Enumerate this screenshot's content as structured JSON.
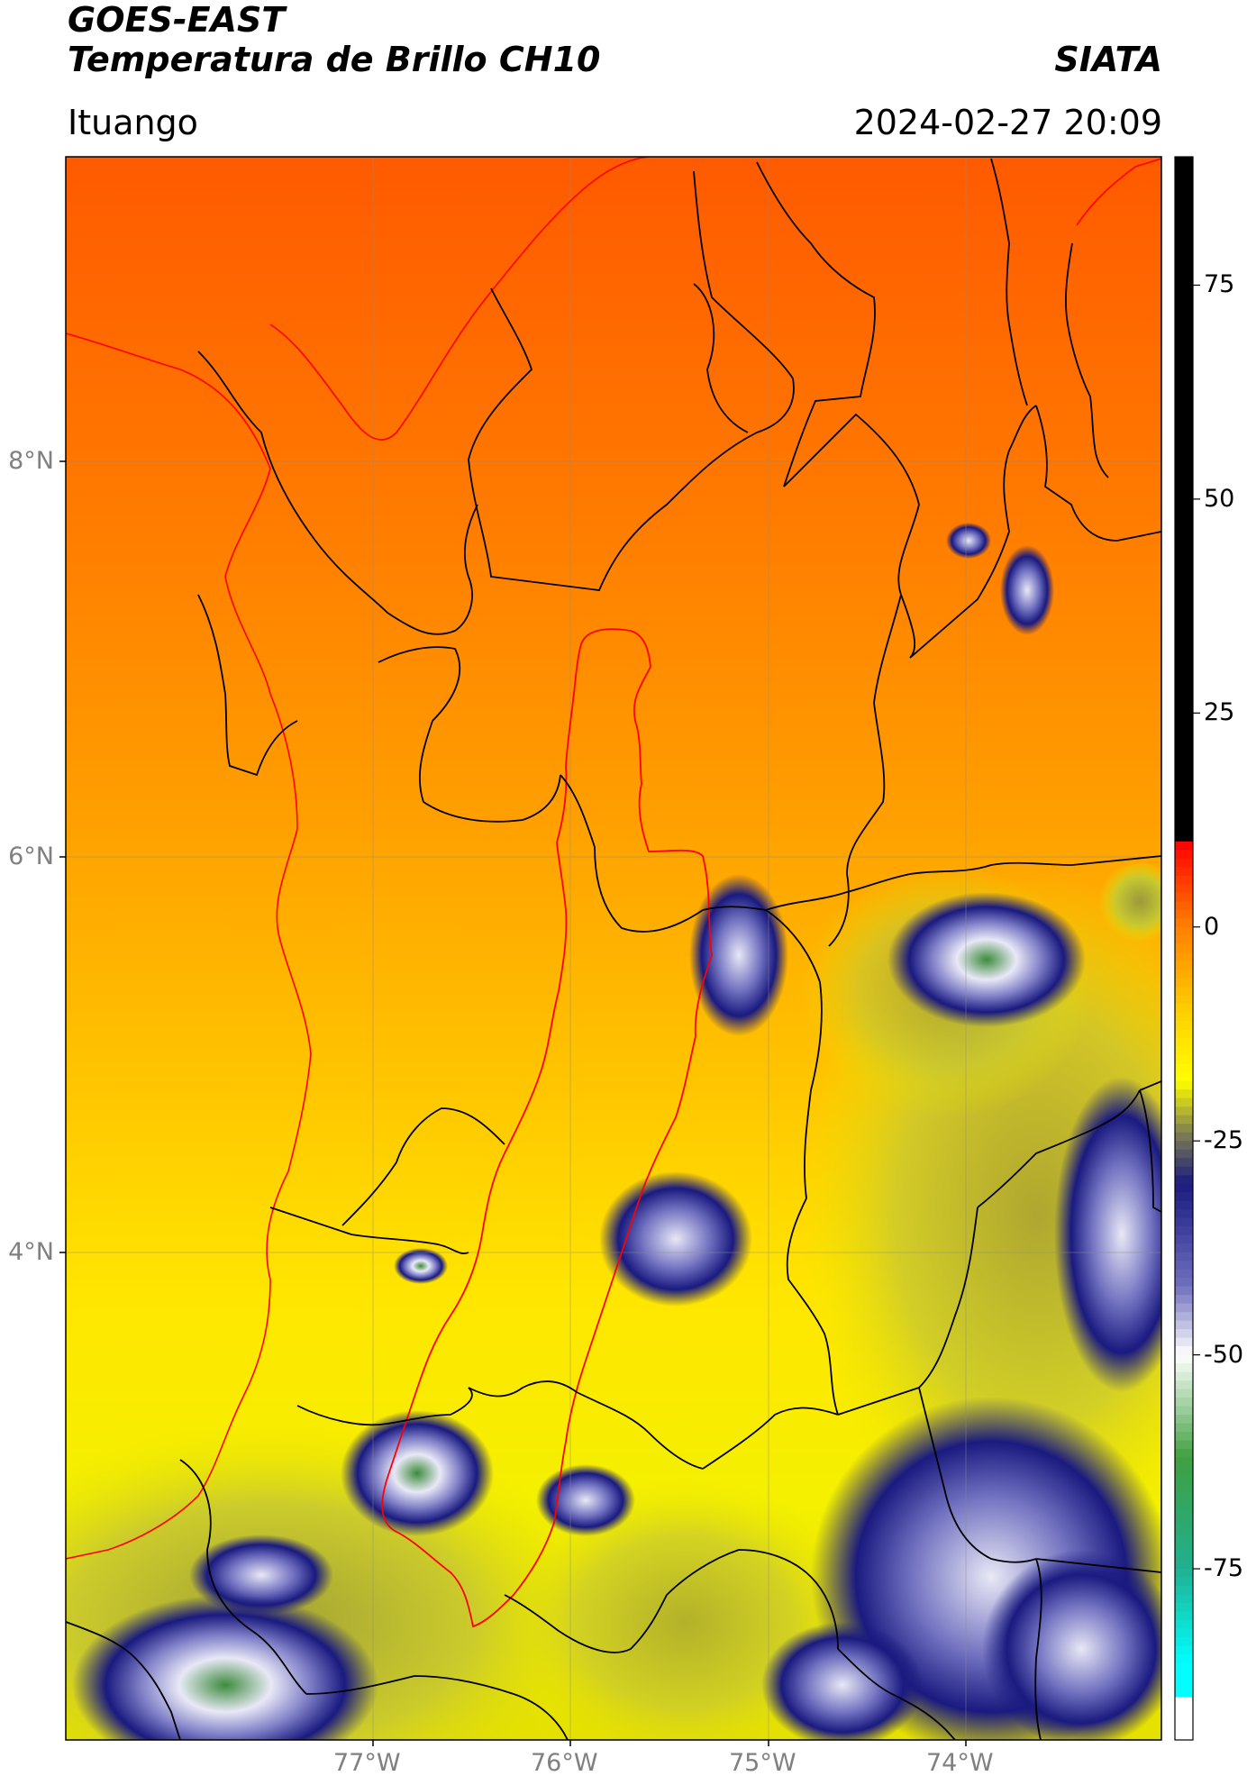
{
  "header": {
    "satellite": "GOES-EAST",
    "product": "Temperatura de Brillo CH10",
    "agency": "SIATA",
    "region": "Ituango",
    "datetime": "2024-02-27 20:09"
  },
  "map": {
    "lat_ticks": [
      "8°N",
      "6°N",
      "4°N"
    ],
    "lon_ticks": [
      "77°W",
      "76°W",
      "75°W",
      "74°W"
    ],
    "colors": {
      "warm_top": "#ff5a00",
      "warm_mid": "#ffa000",
      "warm_low": "#ffd800",
      "yellow": "#f4f000",
      "olive": "#b8b840",
      "navy": "#1a1a80",
      "lavender": "#c8c8ee",
      "green": "#3c8c3c",
      "border_black": "#000000",
      "border_red": "#ff0000"
    }
  },
  "colorbar": {
    "ticks": [
      "75",
      "50",
      "25",
      "0",
      "-25",
      "-50",
      "-75"
    ],
    "tick_values": [
      75,
      50,
      25,
      0,
      -25,
      -50,
      -75
    ],
    "range": [
      -95,
      90
    ],
    "stops": [
      {
        "value": 90,
        "color": "#000000"
      },
      {
        "value": 10,
        "color": "#000000"
      },
      {
        "value": 9.9,
        "color": "#ff0000"
      },
      {
        "value": 0,
        "color": "#ff8000"
      },
      {
        "value": -10,
        "color": "#ffd000"
      },
      {
        "value": -18,
        "color": "#ffff00"
      },
      {
        "value": -24,
        "color": "#808050"
      },
      {
        "value": -30,
        "color": "#1a1a80"
      },
      {
        "value": -42,
        "color": "#7070c0"
      },
      {
        "value": -50,
        "color": "#ffffff"
      },
      {
        "value": -62,
        "color": "#40a040"
      },
      {
        "value": -75,
        "color": "#20b090"
      },
      {
        "value": -86,
        "color": "#00ffff"
      },
      {
        "value": -90,
        "color": "#00ffff"
      },
      {
        "value": -90.1,
        "color": "#ffffff"
      },
      {
        "value": -95,
        "color": "#ffffff"
      }
    ]
  }
}
